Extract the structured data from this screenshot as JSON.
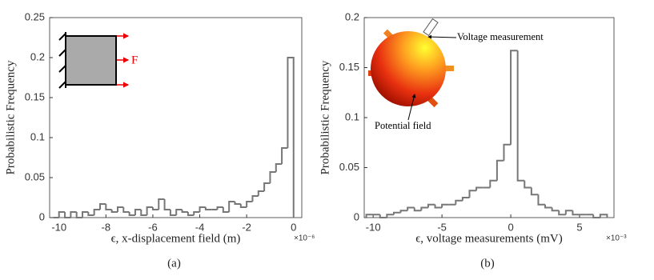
{
  "chart_data": [
    {
      "type": "histogram",
      "color": "#777777",
      "xlabel": "ϵ, x-displacement field (m)",
      "ylabel": "Probabilistic Frequency",
      "x_exponent": "×10⁻⁶",
      "caption": "(a)",
      "annotations": [
        "F"
      ],
      "xlim": [
        -10.4,
        0.35
      ],
      "ylim": [
        0,
        0.25
      ],
      "xticks": [
        -10,
        -8,
        -6,
        -4,
        -2,
        0
      ],
      "yticks": [
        0,
        0.05,
        0.1,
        0.15,
        0.2,
        0.25
      ],
      "bins": [
        -10.25,
        -10,
        -9.75,
        -9.5,
        -9.25,
        -9,
        -8.75,
        -8.5,
        -8.25,
        -8,
        -7.75,
        -7.5,
        -7.25,
        -7,
        -6.75,
        -6.5,
        -6.25,
        -6,
        -5.75,
        -5.5,
        -5.25,
        -5,
        -4.75,
        -4.5,
        -4.25,
        -4,
        -3.75,
        -3.5,
        -3.25,
        -3,
        -2.75,
        -2.5,
        -2.25,
        -2,
        -1.75,
        -1.5,
        -1.25,
        -1,
        -0.75,
        -0.5,
        -0.25,
        0
      ],
      "values": [
        0,
        0.007,
        0,
        0.007,
        0,
        0.007,
        0.003,
        0.01,
        0.017,
        0.01,
        0.007,
        0.013,
        0.007,
        0.003,
        0.01,
        0.003,
        0.013,
        0.01,
        0.023,
        0.01,
        0.003,
        0.01,
        0.007,
        0.003,
        0.007,
        0.013,
        0.01,
        0.01,
        0.013,
        0.007,
        0.02,
        0.017,
        0.013,
        0.02,
        0.027,
        0.033,
        0.043,
        0.057,
        0.067,
        0.087,
        0.2
      ]
    },
    {
      "type": "histogram",
      "color": "#777777",
      "xlabel": "ϵ, voltage measurements (mV)",
      "ylabel": "Probabilistic Frequency",
      "x_exponent": "×10⁻³",
      "caption": "(b)",
      "annotations": [
        "Voltage measurement",
        "Potential field"
      ],
      "xlim": [
        -10.65,
        7.5
      ],
      "ylim": [
        0,
        0.2
      ],
      "xticks": [
        -10,
        -5,
        0,
        5
      ],
      "yticks": [
        0,
        0.05,
        0.1,
        0.15,
        0.2
      ],
      "bins": [
        -10.5,
        -10,
        -9.5,
        -9,
        -8.5,
        -8,
        -7.5,
        -7,
        -6.5,
        -6,
        -5.5,
        -5,
        -4.5,
        -4,
        -3.5,
        -3,
        -2.5,
        -2,
        -1.5,
        -1,
        -0.5,
        0,
        0.5,
        1,
        1.5,
        2,
        2.5,
        3,
        3.5,
        4,
        4.5,
        5,
        5.5,
        6,
        6.5,
        7
      ],
      "values": [
        0.003,
        0.003,
        0,
        0.003,
        0.005,
        0.007,
        0.01,
        0.007,
        0.01,
        0.013,
        0.01,
        0.013,
        0.013,
        0.017,
        0.02,
        0.027,
        0.03,
        0.03,
        0.037,
        0.057,
        0.073,
        0.167,
        0.037,
        0.03,
        0.023,
        0.013,
        0.01,
        0.007,
        0.003,
        0.007,
        0.003,
        0.003,
        0.003,
        0,
        0.003
      ]
    }
  ]
}
